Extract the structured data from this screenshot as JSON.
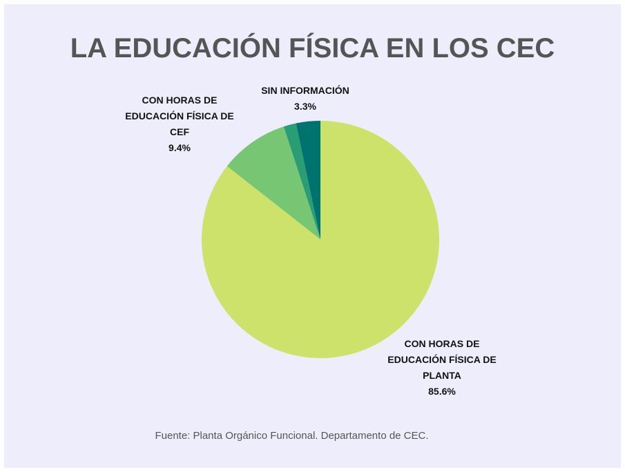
{
  "chart_data": {
    "type": "pie",
    "title": "LA EDUCACIÓN FÍSICA EN LOS CEC",
    "categories": [
      "CON HORAS DE EDUCACIÓN FÍSICA DE PLANTA",
      "CON HORAS DE EDUCACIÓN FÍSICA DE CEF",
      null,
      "SIN INFORMACIÓN"
    ],
    "values": [
      85.6,
      9.4,
      1.7,
      3.3
    ],
    "value_labels": [
      "85.6%",
      "9.4%",
      null,
      "3.3%"
    ],
    "colors": [
      "#cde26a",
      "#76c674",
      "#2a9d74",
      "#00736e"
    ],
    "source": "Fuente: Planta Orgánico Funcional. Departamento de CEC."
  }
}
